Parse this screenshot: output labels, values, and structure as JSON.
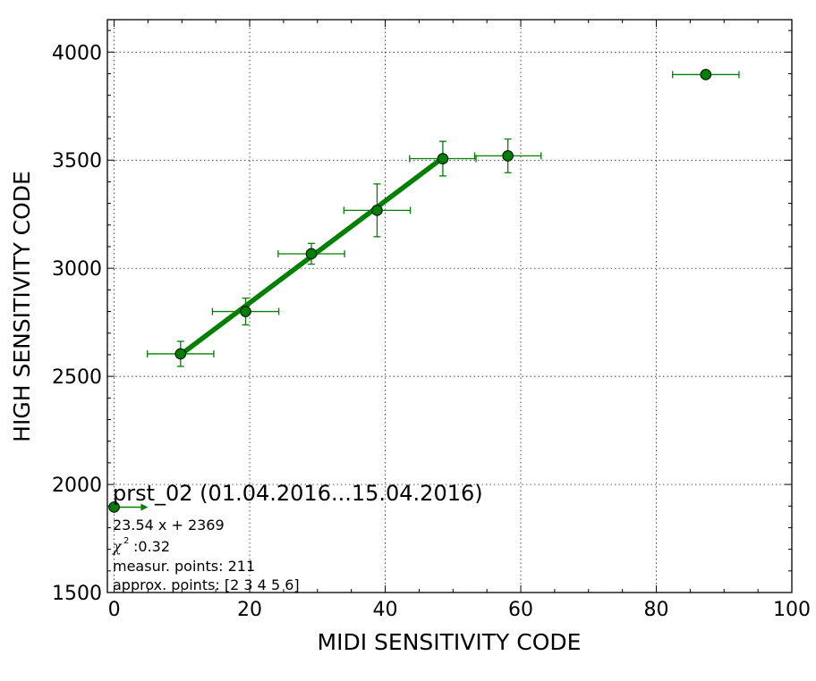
{
  "chart_data": {
    "type": "scatter",
    "xlabel": "MIDI SENSITIVITY CODE",
    "ylabel": "HIGH SENSITIVITY CODE",
    "xlim": [
      -1,
      100
    ],
    "ylim": [
      1500,
      4150
    ],
    "x_ticks": [
      0,
      20,
      40,
      60,
      80,
      100
    ],
    "y_ticks": [
      1500,
      2000,
      2500,
      3000,
      3500,
      4000
    ],
    "grid": true,
    "color": "#008000",
    "points": [
      {
        "x": 0,
        "y": 1895,
        "xerr": 0,
        "yerr": 0
      },
      {
        "x": 9.8,
        "y": 2604,
        "xerr": 4.9,
        "yerr": 58
      },
      {
        "x": 19.4,
        "y": 2800,
        "xerr": 4.9,
        "yerr": 62
      },
      {
        "x": 29.1,
        "y": 3067,
        "xerr": 4.9,
        "yerr": 48
      },
      {
        "x": 38.8,
        "y": 3268,
        "xerr": 4.9,
        "yerr": 122
      },
      {
        "x": 48.5,
        "y": 3507,
        "xerr": 4.9,
        "yerr": 80
      },
      {
        "x": 58.1,
        "y": 3520,
        "xerr": 4.9,
        "yerr": 78
      },
      {
        "x": 87.3,
        "y": 3896,
        "xerr": 4.9,
        "yerr": 0
      }
    ],
    "fit_line": {
      "x": [
        9.8,
        48.5
      ],
      "y": [
        2600,
        3511
      ]
    },
    "arrow": {
      "x": [
        0,
        5
      ],
      "y": [
        1895,
        1895
      ]
    },
    "annotation": {
      "title": "prst_02 (01.04.2016...15.04.2016)",
      "equation": "23.54 x + 2369",
      "chi_symbol": "χ",
      "chi_sup": "2",
      "chi_value": ":0.32",
      "measur_points": "measur. points: 211",
      "approx_points": "approx. points: [2 3 4 5 6]"
    }
  }
}
